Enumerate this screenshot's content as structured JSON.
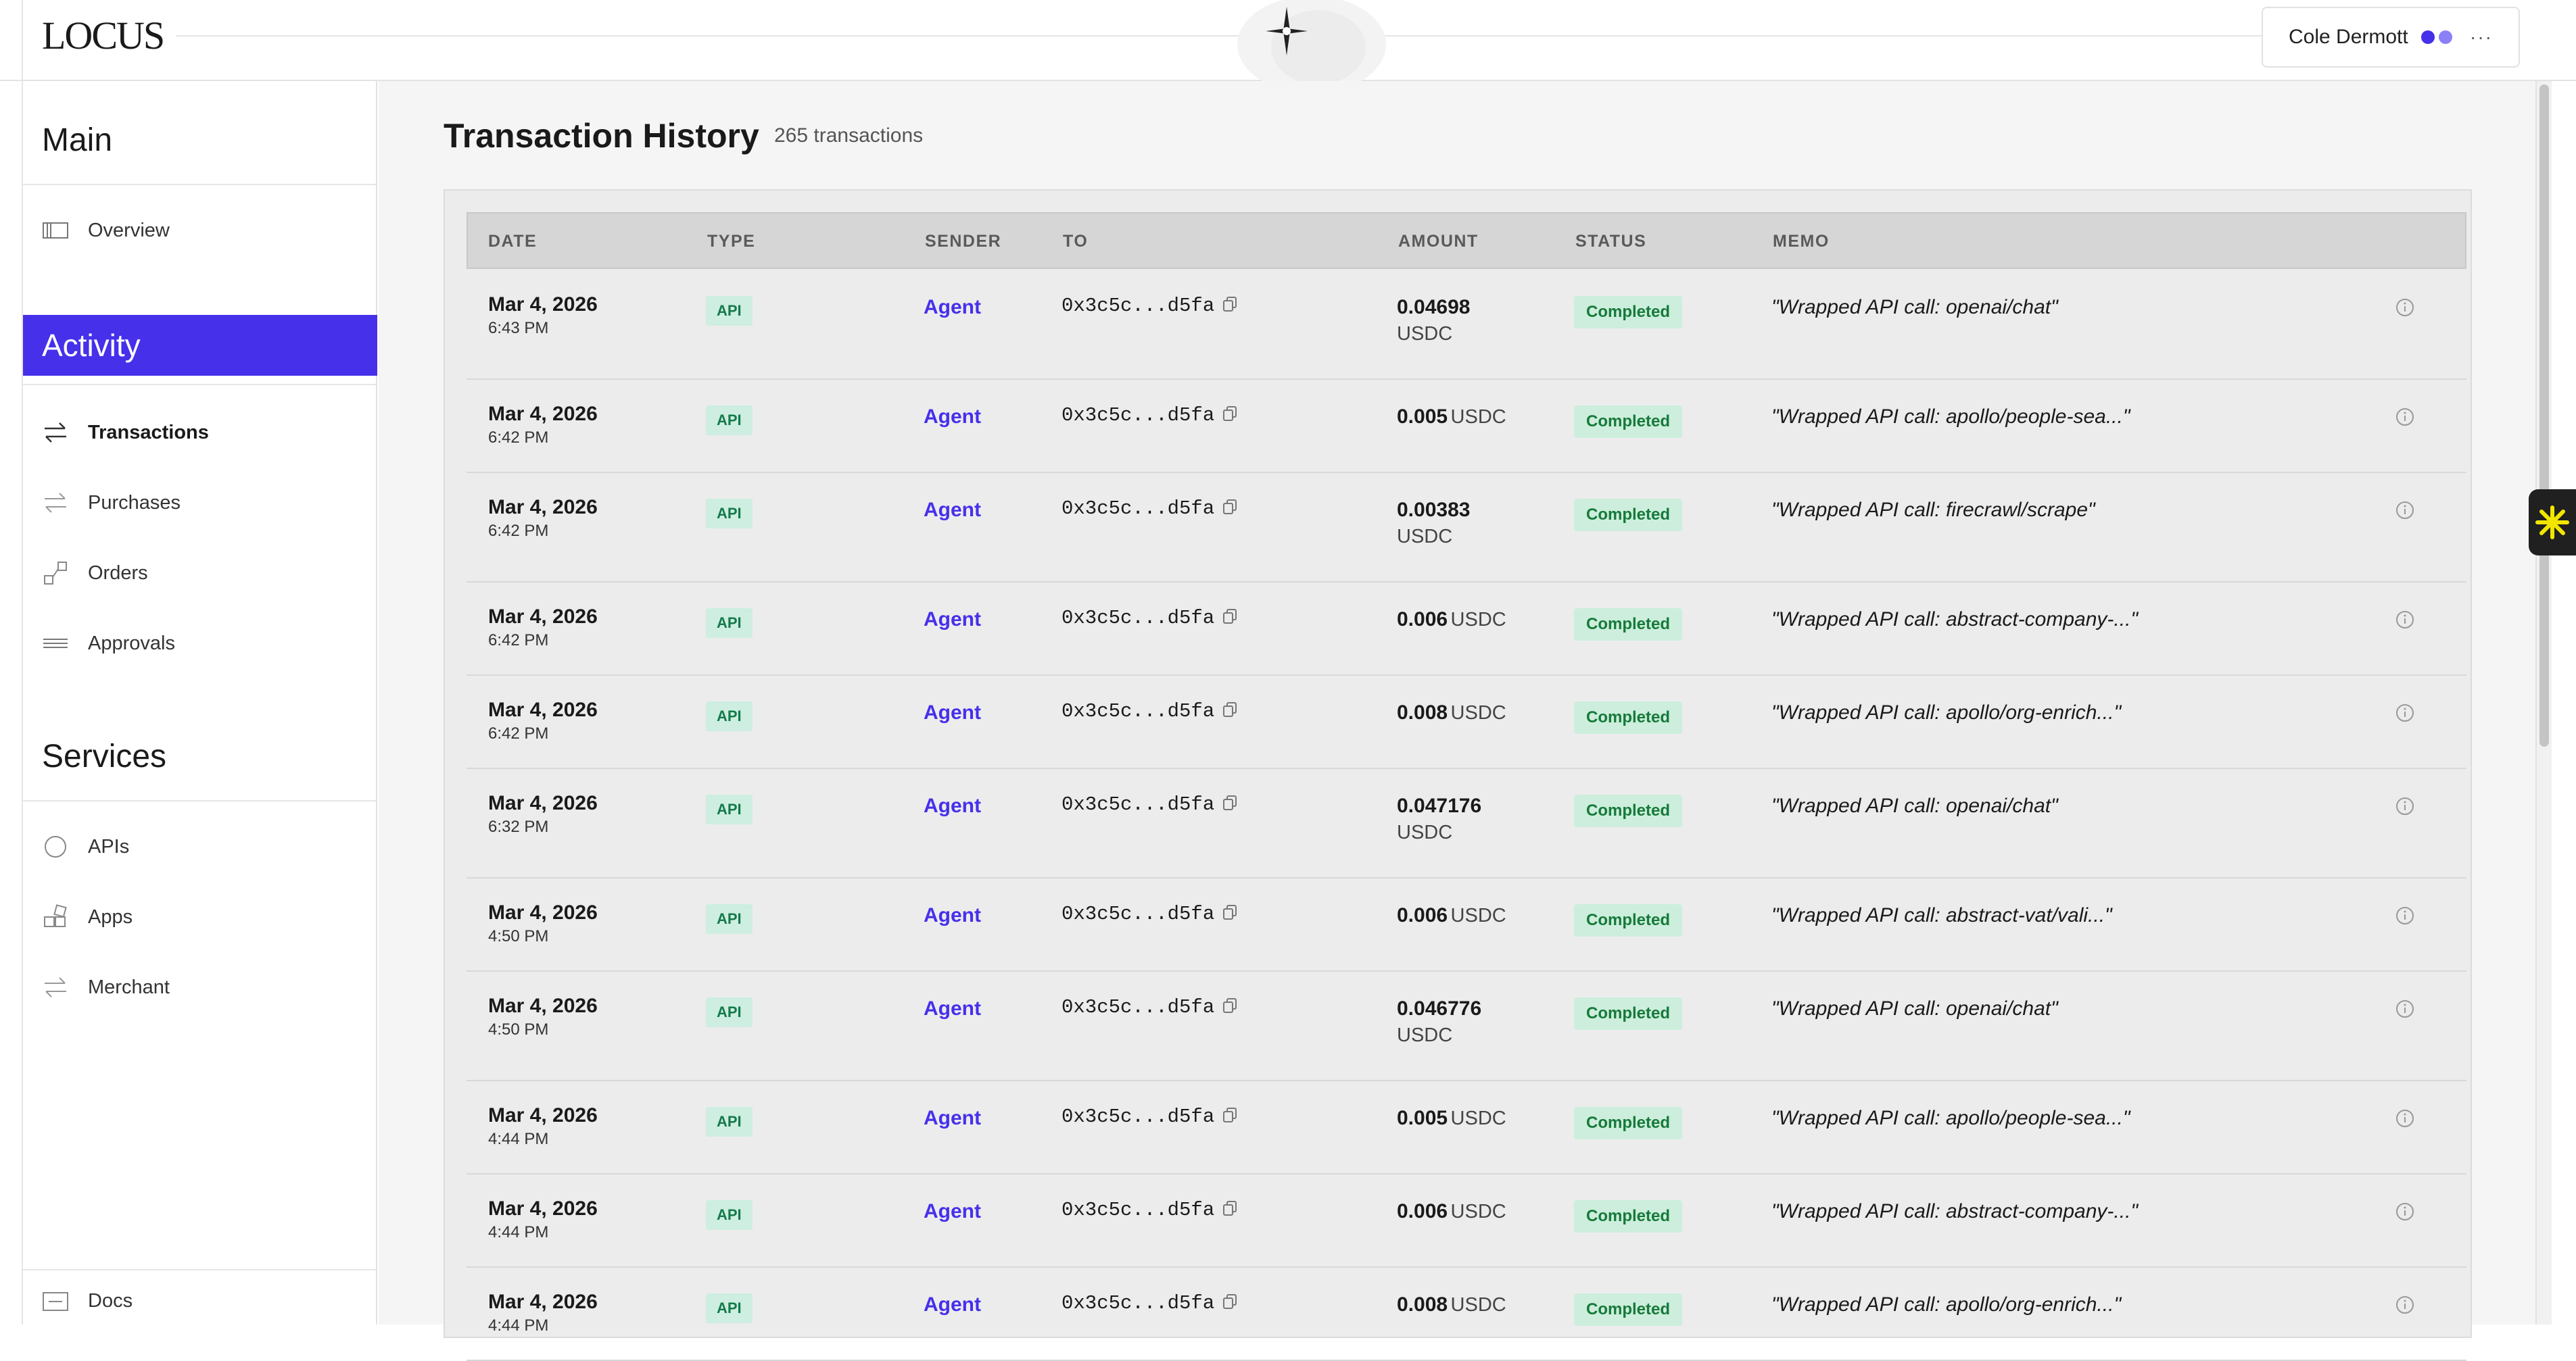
{
  "app": {
    "logo": "LOCUS",
    "user_name": "Cole Dermott",
    "user_dot_colors": [
      "#4630ea",
      "#8b80f5"
    ],
    "more_icon": "more-horizontal-icon",
    "accent_color": "#4630ea"
  },
  "sidebar": {
    "main_title": "Main",
    "overview": "Overview",
    "activity_title": "Activity",
    "activity_items": [
      {
        "label": "Transactions",
        "icon": "transfer-arrows-icon",
        "active": true
      },
      {
        "label": "Purchases",
        "icon": "transfer-arrows-icon",
        "active": false
      },
      {
        "label": "Orders",
        "icon": "orders-icon",
        "active": false
      },
      {
        "label": "Approvals",
        "icon": "stack-lines-icon",
        "active": false
      }
    ],
    "services_title": "Services",
    "services_items": [
      {
        "label": "APIs",
        "icon": "circle-icon"
      },
      {
        "label": "Apps",
        "icon": "grid-icon"
      },
      {
        "label": "Merchant",
        "icon": "transfer-arrows-icon"
      }
    ],
    "docs": "Docs"
  },
  "page": {
    "title": "Transaction History",
    "count": "265 transactions"
  },
  "table": {
    "columns": [
      "DATE",
      "TYPE",
      "SENDER",
      "TO",
      "AMOUNT",
      "STATUS",
      "MEMO"
    ],
    "rows": [
      {
        "date": "Mar 4, 2026",
        "time": "6:43 PM",
        "type": "API",
        "sender": "Agent",
        "to": "0x3c5c...d5fa",
        "amount": "0.04698",
        "unit": "USDC",
        "status": "Completed",
        "memo": "\"Wrapped API call: openai/chat\""
      },
      {
        "date": "Mar 4, 2026",
        "time": "6:42 PM",
        "type": "API",
        "sender": "Agent",
        "to": "0x3c5c...d5fa",
        "amount": "0.005",
        "unit": "USDC",
        "status": "Completed",
        "memo": "\"Wrapped API call: apollo/people-sea...\""
      },
      {
        "date": "Mar 4, 2026",
        "time": "6:42 PM",
        "type": "API",
        "sender": "Agent",
        "to": "0x3c5c...d5fa",
        "amount": "0.00383",
        "unit": "USDC",
        "status": "Completed",
        "memo": "\"Wrapped API call: firecrawl/scrape\""
      },
      {
        "date": "Mar 4, 2026",
        "time": "6:42 PM",
        "type": "API",
        "sender": "Agent",
        "to": "0x3c5c...d5fa",
        "amount": "0.006",
        "unit": "USDC",
        "status": "Completed",
        "memo": "\"Wrapped API call: abstract-company-...\""
      },
      {
        "date": "Mar 4, 2026",
        "time": "6:42 PM",
        "type": "API",
        "sender": "Agent",
        "to": "0x3c5c...d5fa",
        "amount": "0.008",
        "unit": "USDC",
        "status": "Completed",
        "memo": "\"Wrapped API call: apollo/org-enrich...\""
      },
      {
        "date": "Mar 4, 2026",
        "time": "6:32 PM",
        "type": "API",
        "sender": "Agent",
        "to": "0x3c5c...d5fa",
        "amount": "0.047176",
        "unit": "USDC",
        "status": "Completed",
        "memo": "\"Wrapped API call: openai/chat\""
      },
      {
        "date": "Mar 4, 2026",
        "time": "4:50 PM",
        "type": "API",
        "sender": "Agent",
        "to": "0x3c5c...d5fa",
        "amount": "0.006",
        "unit": "USDC",
        "status": "Completed",
        "memo": "\"Wrapped API call: abstract-vat/vali...\""
      },
      {
        "date": "Mar 4, 2026",
        "time": "4:50 PM",
        "type": "API",
        "sender": "Agent",
        "to": "0x3c5c...d5fa",
        "amount": "0.046776",
        "unit": "USDC",
        "status": "Completed",
        "memo": "\"Wrapped API call: openai/chat\""
      },
      {
        "date": "Mar 4, 2026",
        "time": "4:44 PM",
        "type": "API",
        "sender": "Agent",
        "to": "0x3c5c...d5fa",
        "amount": "0.005",
        "unit": "USDC",
        "status": "Completed",
        "memo": "\"Wrapped API call: apollo/people-sea...\""
      },
      {
        "date": "Mar 4, 2026",
        "time": "4:44 PM",
        "type": "API",
        "sender": "Agent",
        "to": "0x3c5c...d5fa",
        "amount": "0.006",
        "unit": "USDC",
        "status": "Completed",
        "memo": "\"Wrapped API call: abstract-company-...\""
      },
      {
        "date": "Mar 4, 2026",
        "time": "4:44 PM",
        "type": "API",
        "sender": "Agent",
        "to": "0x3c5c...d5fa",
        "amount": "0.008",
        "unit": "USDC",
        "status": "Completed",
        "memo": "\"Wrapped API call: apollo/org-enrich...\""
      }
    ]
  }
}
